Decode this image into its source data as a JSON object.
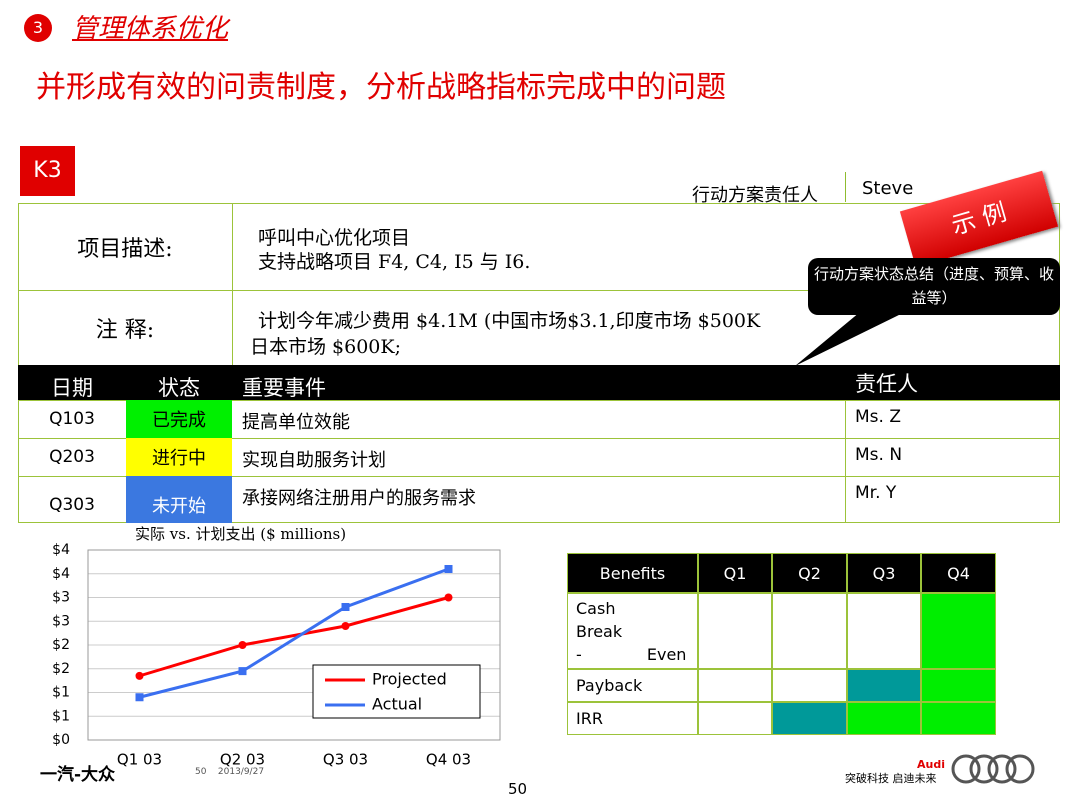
{
  "header": {
    "number": "3",
    "section": "管理体系优化",
    "title": "并形成有效的问责制度，分析战略指标完成中的问题"
  },
  "badge": "K3",
  "owner": {
    "label": "行动方案责任人",
    "name": "Steve"
  },
  "stamp": "示 例",
  "callout": "行动方案状态总结（进度、预算、收益等）",
  "project": {
    "rows": [
      {
        "label": "项目描述:",
        "lines": [
          "呼叫中心优化项目",
          "支持战略项目 F4, C4, I5 与 I6."
        ]
      },
      {
        "label": "注 释:",
        "lines": [
          "计划今年减少费用 $4.1M (中国市场$3.1,印度市场 $500K",
          "日本市场 $600K;"
        ]
      }
    ]
  },
  "milestones": {
    "headers": [
      "日期",
      "状态",
      "重要事件",
      "责任人"
    ],
    "rows": [
      {
        "date": "Q103",
        "status": "已完成",
        "status_color": "#00f000",
        "event": "提高单位效能",
        "owner": "Ms. Z"
      },
      {
        "date": "Q203",
        "status": "进行中",
        "status_color": "#ffff00",
        "event": "实现自助服务计划",
        "owner": "Ms. N"
      },
      {
        "date": "Q303",
        "status": "未开始",
        "status_color": "#3b78e0",
        "event": "承接网络注册用户的服务需求",
        "owner": "Mr. Y"
      }
    ]
  },
  "chart_data": {
    "type": "line",
    "title": "实际 vs. 计划支出 ($ millions)",
    "categories": [
      "Q1 03",
      "Q2 03",
      "Q3 03",
      "Q4 03"
    ],
    "series": [
      {
        "name": "Projected",
        "color": "#ff0000",
        "values": [
          1.35,
          2.0,
          2.4,
          3.0
        ]
      },
      {
        "name": "Actual",
        "color": "#3a6ff0",
        "values": [
          0.9,
          1.45,
          2.8,
          3.6
        ]
      }
    ],
    "ylim": [
      0,
      4
    ],
    "yticks": [
      {
        "value": 0,
        "label": "$0"
      },
      {
        "value": 0.5,
        "label": "$1"
      },
      {
        "value": 1,
        "label": "$1"
      },
      {
        "value": 1.5,
        "label": "$2"
      },
      {
        "value": 2,
        "label": "$2"
      },
      {
        "value": 2.5,
        "label": "$3"
      },
      {
        "value": 3,
        "label": "$3"
      },
      {
        "value": 3.5,
        "label": "$4"
      },
      {
        "value": 4,
        "label": "$4"
      }
    ],
    "grid": true
  },
  "benefits": {
    "headers": [
      "Benefits",
      "Q1",
      "Q2",
      "Q3",
      "Q4"
    ],
    "rows": [
      {
        "name": "Cash Break - Even",
        "fills": [
          "#ffffff",
          "#ffffff",
          "#ffffff",
          "#00ee00"
        ]
      },
      {
        "name": "Payback",
        "fills": [
          "#ffffff",
          "#ffffff",
          "#009999",
          "#00ee00"
        ]
      },
      {
        "name": "IRR",
        "fills": [
          "#ffffff",
          "#009999",
          "#00ee00",
          "#00ee00"
        ]
      }
    ]
  },
  "footer": {
    "brand": "一汽-大众",
    "meta": "50    2013/9/27",
    "page": "50",
    "slogan": "突破科技 启迪未来",
    "logo": "Audi"
  }
}
